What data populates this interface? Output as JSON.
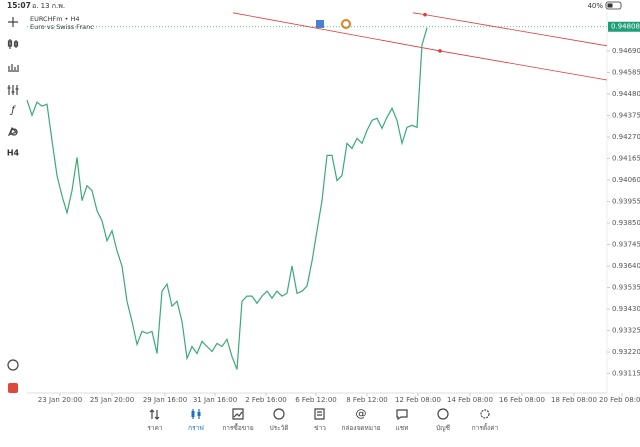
{
  "status_bar": {
    "time": "15:07",
    "date": "อ. 13 ก.พ.",
    "battery": "40%"
  },
  "toolbar": {
    "timeframe": "H4"
  },
  "chart_data": {
    "type": "line",
    "symbol": "EURCHFm • H4",
    "description": "Euro vs Swiss Franc",
    "x": [
      0,
      1,
      2,
      3,
      4,
      5,
      6,
      7,
      8,
      9,
      10,
      11,
      12,
      13,
      14,
      15,
      16,
      17,
      18,
      19,
      20,
      21,
      22,
      23,
      24,
      25,
      26,
      27,
      28,
      29,
      30,
      31,
      32,
      33,
      34,
      35,
      36,
      37,
      38,
      39,
      40,
      41,
      42,
      43,
      44,
      45,
      46,
      47,
      48,
      49,
      50,
      51,
      52,
      53,
      54,
      55,
      56,
      57,
      58,
      59,
      60,
      61,
      62,
      63,
      64,
      65,
      66,
      67,
      68,
      69,
      70,
      71,
      72,
      73,
      74,
      75,
      76,
      77,
      78,
      79,
      80
    ],
    "series": [
      {
        "color": "#3aaa78",
        "values": [
          0.9445,
          0.94376,
          0.9444,
          0.9442,
          0.9443,
          0.94253,
          0.94082,
          0.93983,
          0.939,
          0.94008,
          0.9417,
          0.93959,
          0.94032,
          0.94008,
          0.9391,
          0.93861,
          0.93763,
          0.93812,
          0.93714,
          0.9364,
          0.93468,
          0.9337,
          0.93257,
          0.93321,
          0.93311,
          0.93321,
          0.93213,
          0.93517,
          0.93552,
          0.93444,
          0.93468,
          0.9337,
          0.93189,
          0.93247,
          0.93213,
          0.93272,
          0.93247,
          0.93223,
          0.93262,
          0.93247,
          0.93282,
          0.93198,
          0.93135,
          0.93468,
          0.93493,
          0.93493,
          0.93458,
          0.93493,
          0.93517,
          0.93483,
          0.93517,
          0.93493,
          0.93507,
          0.9364,
          0.93507,
          0.93517,
          0.93542,
          0.93664,
          0.93812,
          0.93959,
          0.9418,
          0.9418,
          0.94057,
          0.94082,
          0.94239,
          0.94214,
          0.94263,
          0.94239,
          0.94302,
          0.94351,
          0.94361,
          0.94312,
          0.94366,
          0.9441,
          0.94351,
          0.94239,
          0.94317,
          0.94327,
          0.94317,
          0.94719,
          0.94803
        ]
      }
    ],
    "xlim": [
      0,
      116
    ],
    "xticks": [
      {
        "value": 6.6,
        "label": "23 Jan 20:00"
      },
      {
        "value": 17,
        "label": "25 Jan 20:00"
      },
      {
        "value": 27.6,
        "label": "29 Jan 16:00"
      },
      {
        "value": 37.6,
        "label": "31 Jan 16:00"
      },
      {
        "value": 47.8,
        "label": "2 Feb 16:00"
      },
      {
        "value": 57.8,
        "label": "6 Feb 12:00"
      },
      {
        "value": 68,
        "label": "8 Feb 12:00"
      },
      {
        "value": 78.2,
        "label": "12 Feb 08:00"
      },
      {
        "value": 88.6,
        "label": "14 Feb 08:00"
      },
      {
        "value": 99,
        "label": "16 Feb 08:00"
      },
      {
        "value": 109.4,
        "label": "18 Feb 08:00"
      },
      {
        "value": 119,
        "label": "20 Feb 08:00"
      }
    ],
    "ylim": [
      0.9302,
      0.9488
    ],
    "yticks": [
      {
        "value": 0.9469,
        "label": "0.94690"
      },
      0.94585,
      {
        "value": 0.9448,
        "label": "0.94480"
      },
      0.94375,
      {
        "value": 0.9427,
        "label": "0.94270"
      },
      0.94165,
      {
        "value": 0.9406,
        "label": "0.94060"
      },
      0.93955,
      {
        "value": 0.9385,
        "label": "0.93850"
      },
      0.93745,
      {
        "value": 0.9364,
        "label": "0.93640"
      },
      0.93535,
      {
        "value": 0.9343,
        "label": "0.93430"
      },
      0.93325,
      {
        "value": 0.9322,
        "label": "0.93220"
      },
      0.93115
    ],
    "last_price": {
      "value": 0.94808,
      "label": "0.94808"
    },
    "trendlines": [
      {
        "color": "#e03a3a",
        "x": [
          41.2,
          82.6,
          116
        ],
        "y": [
          0.94876,
          0.9469,
          0.94548
        ]
      },
      {
        "color": "#e03a3a",
        "x": [
          77.2,
          79.6,
          116
        ],
        "y": [
          0.94876,
          0.94867,
          0.94715
        ]
      }
    ]
  },
  "nav": {
    "items": [
      "ราคา",
      "กราฟ",
      "การซื้อขาย",
      "ประวัติ",
      "ข่าว",
      "กล่องจดหมาย",
      "แชท",
      "บัญชี",
      "การตั้งค่า"
    ],
    "active": 1
  }
}
